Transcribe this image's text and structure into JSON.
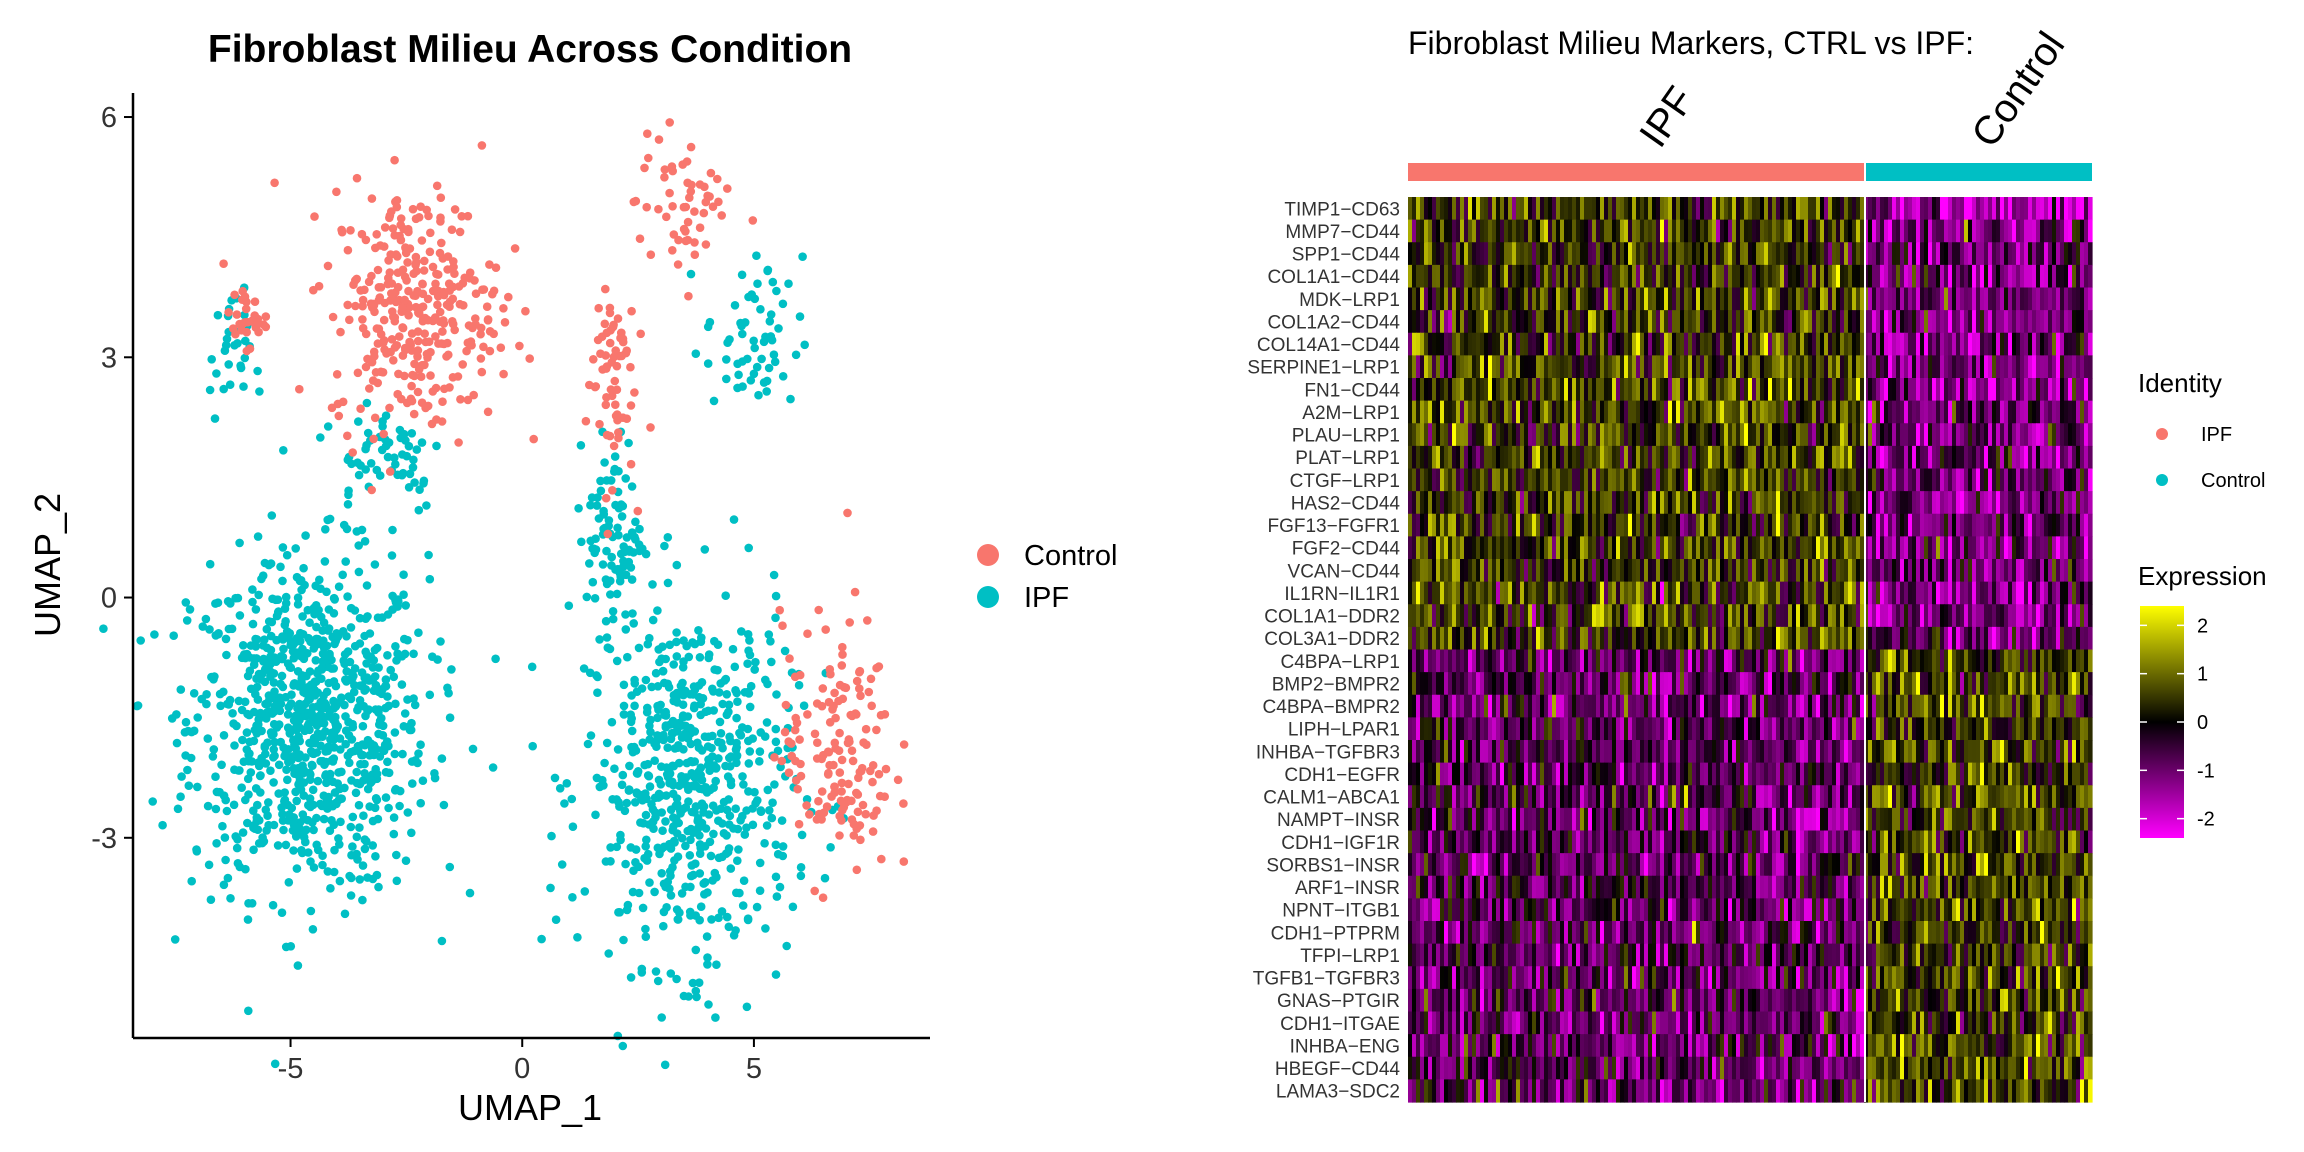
{
  "colors": {
    "ipf": "#F8766D",
    "control": "#00BFC4"
  },
  "chart_data": [
    {
      "type": "scatter",
      "title": "Fibroblast Milieu Across Condition",
      "xlabel": "UMAP_1",
      "ylabel": "UMAP_2",
      "xlim": [
        -8.4,
        8.8
      ],
      "ylim": [
        -5.5,
        6.3
      ],
      "x_ticks": [
        "-5",
        "0",
        "5"
      ],
      "x_tick_values": [
        -5,
        0,
        5
      ],
      "y_ticks": [
        "-3",
        "0",
        "3",
        "6"
      ],
      "y_tick_values": [
        -3,
        0,
        3,
        6
      ],
      "legend": {
        "position": "right",
        "entries": [
          "Control",
          "IPF"
        ]
      },
      "series": [
        {
          "name": "Control",
          "color": "#F8766D",
          "clusters": [
            {
              "cx": -2.3,
              "cy": 3.6,
              "sx": 1.2,
              "sy": 1.0,
              "n": 330
            },
            {
              "cx": -6.0,
              "cy": 3.5,
              "sx": 0.3,
              "sy": 0.25,
              "n": 30
            },
            {
              "cx": 3.5,
              "cy": 4.9,
              "sx": 0.7,
              "sy": 0.6,
              "n": 55
            },
            {
              "cx": 1.9,
              "cy": 2.8,
              "sx": 0.35,
              "sy": 0.9,
              "n": 65
            },
            {
              "cx": 6.8,
              "cy": -1.9,
              "sx": 0.8,
              "sy": 1.1,
              "n": 150
            }
          ]
        },
        {
          "name": "IPF",
          "color": "#00BFC4",
          "clusters": [
            {
              "cx": -4.6,
              "cy": -1.6,
              "sx": 1.7,
              "sy": 1.4,
              "n": 900
            },
            {
              "cx": 3.6,
              "cy": -2.3,
              "sx": 1.5,
              "sy": 1.5,
              "n": 620
            },
            {
              "cx": -6.3,
              "cy": 3.0,
              "sx": 0.3,
              "sy": 0.55,
              "n": 30
            },
            {
              "cx": 5.0,
              "cy": 3.2,
              "sx": 0.7,
              "sy": 0.7,
              "n": 60
            },
            {
              "cx": 2.0,
              "cy": 0.8,
              "sx": 0.4,
              "sy": 0.8,
              "n": 90
            },
            {
              "cx": -3.0,
              "cy": 1.8,
              "sx": 0.9,
              "sy": 0.5,
              "n": 60
            }
          ]
        }
      ]
    },
    {
      "type": "heatmap",
      "title": "Fibroblast Milieu Markers, CTRL vs IPF:",
      "groups": [
        {
          "name": "IPF",
          "color": "#F8766D",
          "fraction": 0.667
        },
        {
          "name": "Control",
          "color": "#00BFC4",
          "fraction": 0.333
        }
      ],
      "rows": [
        "TIMP1−CD63",
        "MMP7−CD44",
        "SPP1−CD44",
        "COL1A1−CD44",
        "MDK−LRP1",
        "COL1A2−CD44",
        "COL14A1−CD44",
        "SERPINE1−LRP1",
        "FN1−CD44",
        "A2M−LRP1",
        "PLAU−LRP1",
        "PLAT−LRP1",
        "CTGF−LRP1",
        "HAS2−CD44",
        "FGF13−FGFR1",
        "FGF2−CD44",
        "VCAN−CD44",
        "IL1RN−IL1R1",
        "COL1A1−DDR2",
        "COL3A1−DDR2",
        "C4BPA−LRP1",
        "BMP2−BMPR2",
        "C4BPA−BMPR2",
        "LIPH−LPAR1",
        "INHBA−TGFBR3",
        "CDH1−EGFR",
        "CALM1−ABCA1",
        "NAMPT−INSR",
        "CDH1−IGF1R",
        "SORBS1−INSR",
        "ARF1−INSR",
        "NPNT−ITGB1",
        "CDH1−PTPRM",
        "TFPI−LRP1",
        "TGFB1−TGFBR3",
        "GNAS−PTGIR",
        "CDH1−ITGAE",
        "INHBA−ENG",
        "HBEGF−CD44",
        "LAMA3−SDC2"
      ],
      "ipf_up_rows": 20,
      "color_scale": {
        "min": -2.4,
        "max": 2.4,
        "colors": [
          "#FF00FF",
          "#000000",
          "#FFFF00"
        ]
      },
      "legend": {
        "identity_title": "Identity",
        "identity_entries": [
          "IPF",
          "Control"
        ],
        "expression_title": "Expression",
        "expression_ticks": [
          "2",
          "1",
          "0",
          "-1",
          "-2"
        ],
        "expression_tick_values": [
          2,
          1,
          0,
          -1,
          -2
        ]
      }
    }
  ]
}
